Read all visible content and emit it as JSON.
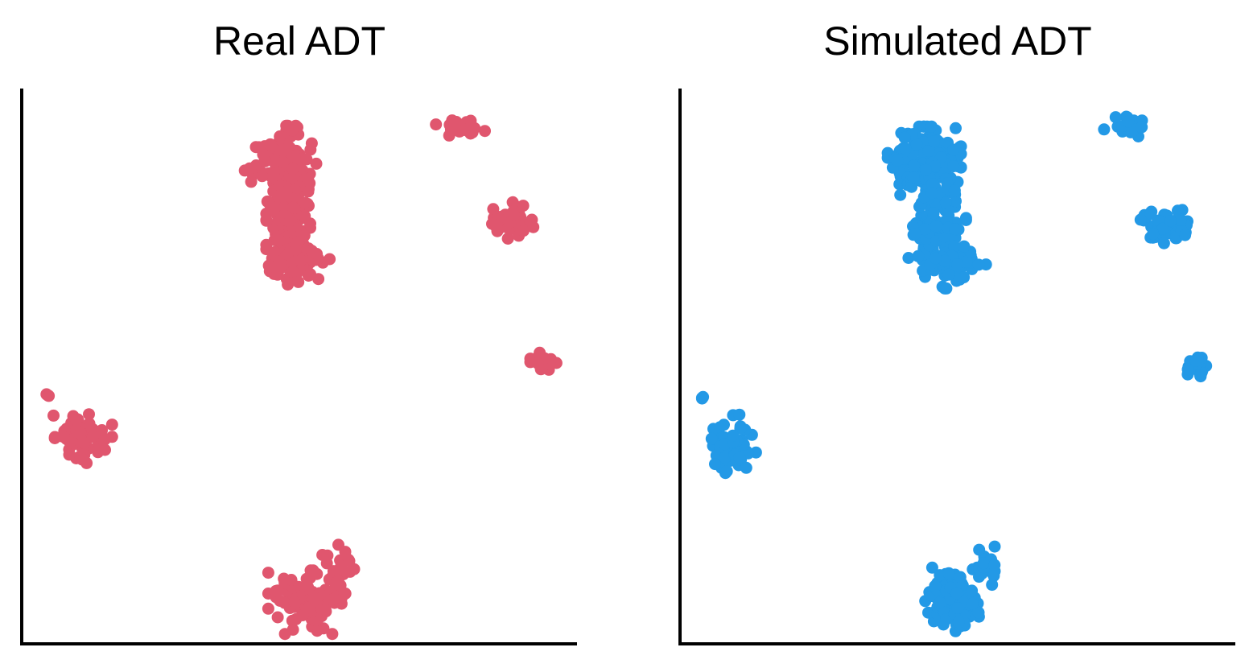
{
  "chart_data": [
    {
      "type": "scatter",
      "title": "Real ADT",
      "xlabel": "",
      "ylabel": "",
      "xlim": [
        0,
        100
      ],
      "ylim": [
        0,
        100
      ],
      "grid": false,
      "color": "#e0566e",
      "clusters": [
        {
          "x": 48,
          "y": 79,
          "sx": 1.8,
          "sy": 6.5,
          "n": 260
        },
        {
          "x": 46,
          "y": 87,
          "sx": 3.2,
          "sy": 2.5,
          "n": 60
        },
        {
          "x": 50,
          "y": 69,
          "sx": 2.5,
          "sy": 1.5,
          "n": 50
        },
        {
          "x": 79,
          "y": 93,
          "sx": 2.0,
          "sy": 0.8,
          "n": 25
        },
        {
          "x": 88,
          "y": 76,
          "sx": 2.0,
          "sy": 1.6,
          "n": 40
        },
        {
          "x": 94,
          "y": 50.5,
          "sx": 1.2,
          "sy": 0.9,
          "n": 22
        },
        {
          "x": 4.5,
          "y": 44.5,
          "sx": 0.3,
          "sy": 0.3,
          "n": 3
        },
        {
          "x": 11,
          "y": 37,
          "sx": 2.4,
          "sy": 2.4,
          "n": 70
        },
        {
          "x": 51,
          "y": 7.5,
          "sx": 3.0,
          "sy": 2.6,
          "n": 110
        },
        {
          "x": 57,
          "y": 13,
          "sx": 1.3,
          "sy": 2.2,
          "n": 25
        }
      ]
    },
    {
      "type": "scatter",
      "title": "Simulated ADT",
      "xlabel": "",
      "ylabel": "",
      "xlim": [
        0,
        100
      ],
      "ylim": [
        0,
        100
      ],
      "grid": false,
      "color": "#2399e6",
      "clusters": [
        {
          "x": 44,
          "y": 87,
          "sx": 3.0,
          "sy": 2.8,
          "n": 150
        },
        {
          "x": 46,
          "y": 75,
          "sx": 2.5,
          "sy": 5.0,
          "n": 130
        },
        {
          "x": 50,
          "y": 68.5,
          "sx": 2.5,
          "sy": 1.4,
          "n": 40
        },
        {
          "x": 80.5,
          "y": 93,
          "sx": 2.0,
          "sy": 0.9,
          "n": 25
        },
        {
          "x": 88,
          "y": 75.5,
          "sx": 2.3,
          "sy": 1.6,
          "n": 60
        },
        {
          "x": 93,
          "y": 50,
          "sx": 1.0,
          "sy": 0.9,
          "n": 20
        },
        {
          "x": 4,
          "y": 44.5,
          "sx": 0.3,
          "sy": 0.3,
          "n": 3
        },
        {
          "x": 9.5,
          "y": 36,
          "sx": 1.9,
          "sy": 2.4,
          "n": 60
        },
        {
          "x": 49,
          "y": 8,
          "sx": 2.2,
          "sy": 2.6,
          "n": 110
        },
        {
          "x": 55.5,
          "y": 14,
          "sx": 0.9,
          "sy": 1.6,
          "n": 22
        }
      ]
    }
  ]
}
